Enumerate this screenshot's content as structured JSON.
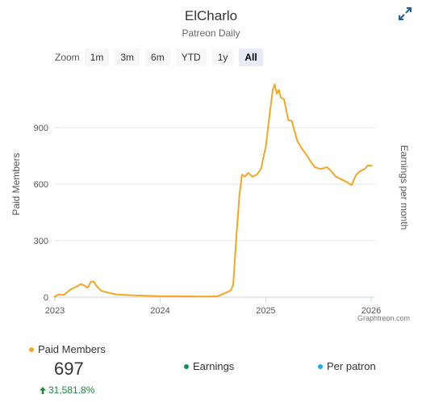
{
  "header": {
    "title": "ElCharlo",
    "subtitle": "Patreon Daily"
  },
  "zoom": {
    "label": "Zoom",
    "buttons": [
      "1m",
      "3m",
      "6m",
      "YTD",
      "1y",
      "All"
    ],
    "active": "All"
  },
  "credit": "Graphtreon.com",
  "legend": {
    "paid_members": {
      "label": "Paid Members",
      "color": "#f5a623"
    },
    "earnings": {
      "label": "Earnings",
      "color": "#1a8a5a"
    },
    "per_patron": {
      "label": "Per patron",
      "color": "#1eaaf1"
    },
    "current_value": "697",
    "change": "31,581.8%"
  },
  "chart_data": {
    "type": "line",
    "title": "ElCharlo",
    "subtitle": "Patreon Daily",
    "ylabel": "Paid Members",
    "y2label": "Earnings per month",
    "ylim": [
      0,
      1170
    ],
    "yticks": [
      0,
      300,
      600,
      900
    ],
    "xticks": [
      "2023",
      "2024",
      "2025",
      "2026"
    ],
    "xlim": [
      "2023-01-01",
      "2026-01-15"
    ],
    "grid": true,
    "series": [
      {
        "name": "Paid Members",
        "color": "#f5a623",
        "points": [
          [
            "2022-12-28",
            0
          ],
          [
            "2023-01-15",
            15
          ],
          [
            "2023-02-01",
            12
          ],
          [
            "2023-02-15",
            30
          ],
          [
            "2023-03-01",
            45
          ],
          [
            "2023-03-15",
            55
          ],
          [
            "2023-04-01",
            70
          ],
          [
            "2023-04-15",
            60
          ],
          [
            "2023-04-25",
            50
          ],
          [
            "2023-05-05",
            80
          ],
          [
            "2023-05-15",
            85
          ],
          [
            "2023-05-25",
            60
          ],
          [
            "2023-06-10",
            35
          ],
          [
            "2023-07-01",
            25
          ],
          [
            "2023-08-01",
            15
          ],
          [
            "2023-09-01",
            12
          ],
          [
            "2023-10-01",
            10
          ],
          [
            "2023-11-01",
            8
          ],
          [
            "2024-01-01",
            5
          ],
          [
            "2024-03-01",
            5
          ],
          [
            "2024-05-01",
            4
          ],
          [
            "2024-07-01",
            4
          ],
          [
            "2024-07-20",
            6
          ],
          [
            "2024-08-10",
            20
          ],
          [
            "2024-09-01",
            35
          ],
          [
            "2024-09-10",
            65
          ],
          [
            "2024-09-20",
            300
          ],
          [
            "2024-10-01",
            530
          ],
          [
            "2024-10-10",
            650
          ],
          [
            "2024-10-20",
            640
          ],
          [
            "2024-11-01",
            660
          ],
          [
            "2024-11-15",
            640
          ],
          [
            "2024-12-01",
            650
          ],
          [
            "2024-12-15",
            680
          ],
          [
            "2025-01-01",
            800
          ],
          [
            "2025-01-15",
            980
          ],
          [
            "2025-01-25",
            1100
          ],
          [
            "2025-02-01",
            1130
          ],
          [
            "2025-02-08",
            1080
          ],
          [
            "2025-02-15",
            1100
          ],
          [
            "2025-02-22",
            1060
          ],
          [
            "2025-03-05",
            1050
          ],
          [
            "2025-03-20",
            940
          ],
          [
            "2025-04-01",
            935
          ],
          [
            "2025-04-20",
            830
          ],
          [
            "2025-05-05",
            790
          ],
          [
            "2025-05-20",
            760
          ],
          [
            "2025-06-05",
            720
          ],
          [
            "2025-06-20",
            690
          ],
          [
            "2025-07-10",
            680
          ],
          [
            "2025-08-01",
            690
          ],
          [
            "2025-08-15",
            670
          ],
          [
            "2025-09-01",
            640
          ],
          [
            "2025-09-20",
            625
          ],
          [
            "2025-10-10",
            610
          ],
          [
            "2025-10-25",
            595
          ],
          [
            "2025-11-10",
            650
          ],
          [
            "2025-11-25",
            670
          ],
          [
            "2025-12-10",
            680
          ],
          [
            "2025-12-20",
            700
          ],
          [
            "2026-01-05",
            697
          ]
        ]
      }
    ]
  }
}
